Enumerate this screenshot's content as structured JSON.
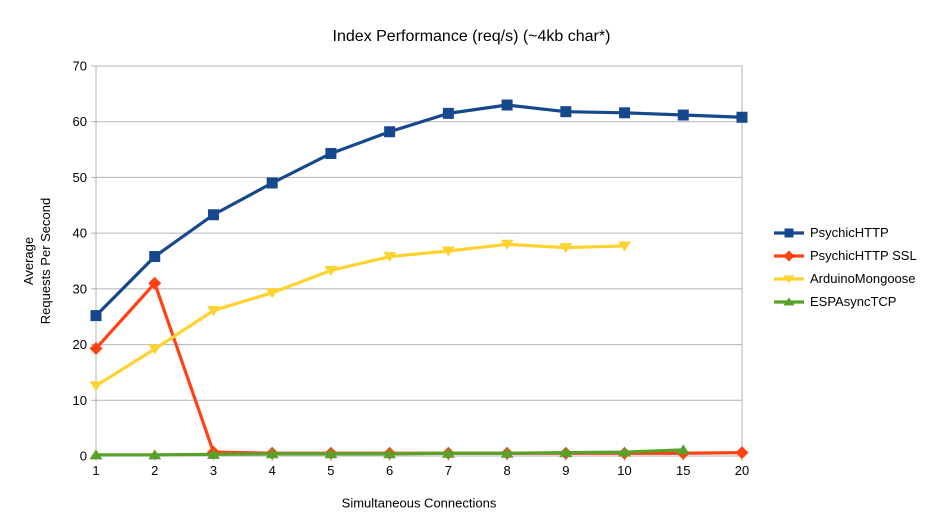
{
  "chart_data": {
    "type": "line",
    "title": "Index Performance (req/s) (~4kb char*)",
    "xlabel": "Simultaneous Connections",
    "ylabel_lines": [
      "Average",
      "Requests Per Second"
    ],
    "categories": [
      "1",
      "2",
      "3",
      "4",
      "5",
      "6",
      "7",
      "8",
      "9",
      "10",
      "15",
      "20"
    ],
    "ylim": [
      0,
      70
    ],
    "ytick_step": 10,
    "grid": "horizontal-only",
    "legend_position": "right",
    "axis_color": "#b3b3b3",
    "text_color": "#000000",
    "series": [
      {
        "name": "PsychicHTTP",
        "color": "#16488e",
        "marker": "square",
        "values": [
          25.2,
          35.8,
          43.3,
          49.0,
          54.3,
          58.2,
          61.5,
          63.0,
          61.8,
          61.6,
          61.2,
          60.8
        ]
      },
      {
        "name": "PsychicHTTP SSL",
        "color": "#ff4214",
        "marker": "diamond",
        "values": [
          19.3,
          31.0,
          0.7,
          0.5,
          0.5,
          0.5,
          0.5,
          0.5,
          0.5,
          0.5,
          0.5,
          0.6
        ]
      },
      {
        "name": "ArduinoMongoose",
        "color": "#fed22f",
        "marker": "triangle-down",
        "values": [
          12.6,
          19.2,
          26.1,
          29.3,
          33.3,
          35.8,
          36.8,
          38.0,
          37.4,
          37.7
        ]
      },
      {
        "name": "ESPAsyncTCP",
        "color": "#5aa12b",
        "marker": "triangle-up",
        "values": [
          0.2,
          0.2,
          0.3,
          0.4,
          0.4,
          0.4,
          0.5,
          0.5,
          0.6,
          0.7,
          1.1
        ]
      }
    ]
  }
}
